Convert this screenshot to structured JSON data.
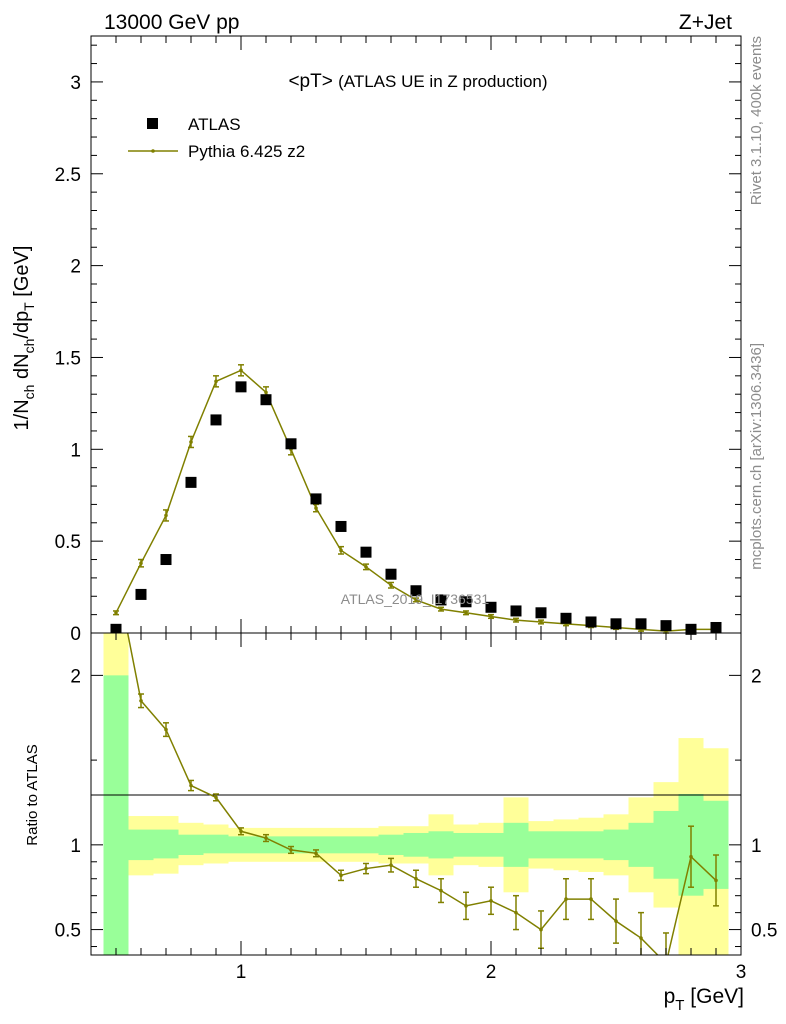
{
  "header": {
    "left": "13000 GeV pp",
    "right": "Z+Jet"
  },
  "chart_data": {
    "type": "scatter",
    "title": "<pT>",
    "subtitle": "(ATLAS UE in Z production)",
    "watermark": "ATLAS_2019_I1736531",
    "side_label_top": "Rivet 3.1.10,  400k events",
    "side_label_bottom": "mcplots.cern.ch [arXiv:1306.3436]",
    "xlabel": "p_T [GeV]",
    "xlim": [
      0.4,
      3.0
    ],
    "main": {
      "ylabel": "1/N_ch dN_ch/dp_T [GeV]",
      "ylim": [
        0,
        3.25
      ],
      "yticks": [
        "0",
        "0.5",
        "1",
        "1.5",
        "2",
        "2.5",
        "3"
      ],
      "legend_position": "top-left",
      "series": [
        {
          "name": "ATLAS",
          "style": "markers",
          "color": "#000000",
          "x": [
            0.5,
            0.6,
            0.7,
            0.8,
            0.9,
            1.0,
            1.1,
            1.2,
            1.3,
            1.4,
            1.5,
            1.6,
            1.7,
            1.8,
            1.9,
            2.0,
            2.1,
            2.2,
            2.3,
            2.4,
            2.5,
            2.6,
            2.7,
            2.8,
            2.9
          ],
          "y": [
            0.02,
            0.21,
            0.4,
            0.82,
            1.16,
            1.34,
            1.27,
            1.03,
            0.73,
            0.58,
            0.44,
            0.32,
            0.23,
            0.18,
            0.17,
            0.14,
            0.12,
            0.11,
            0.08,
            0.06,
            0.05,
            0.05,
            0.04,
            0.02,
            0.03
          ]
        },
        {
          "name": "Pythia 6.425 z2",
          "style": "line-errorbars",
          "color": "#808000",
          "x": [
            0.5,
            0.6,
            0.7,
            0.8,
            0.9,
            1.0,
            1.1,
            1.2,
            1.3,
            1.4,
            1.5,
            1.6,
            1.7,
            1.8,
            1.9,
            2.0,
            2.1,
            2.2,
            2.3,
            2.4,
            2.5,
            2.6,
            2.7,
            2.8,
            2.9
          ],
          "y": [
            0.11,
            0.38,
            0.64,
            1.04,
            1.37,
            1.43,
            1.31,
            1.0,
            0.68,
            0.45,
            0.36,
            0.26,
            0.18,
            0.13,
            0.11,
            0.09,
            0.07,
            0.06,
            0.05,
            0.04,
            0.03,
            0.02,
            0.01,
            0.02,
            0.02
          ],
          "err": [
            0.01,
            0.02,
            0.03,
            0.03,
            0.03,
            0.03,
            0.03,
            0.03,
            0.02,
            0.02,
            0.015,
            0.015,
            0.01,
            0.01,
            0.01,
            0.01,
            0.01,
            0.01,
            0.01,
            0.01,
            0.01,
            0.01,
            0.01,
            0.01,
            0.01
          ]
        }
      ]
    },
    "ratio": {
      "ylabel": "Ratio to ATLAS",
      "ylim": [
        0.35,
        2.25
      ],
      "yticks": [
        "0.5",
        "1",
        "2"
      ],
      "xticks": [
        "1",
        "2",
        "3"
      ],
      "band_colors": {
        "stat": "#99ff99",
        "total": "#ffff99"
      },
      "bins": [
        {
          "lo": 0.45,
          "hi": 0.55,
          "stat": [
            0.35,
            2.0
          ],
          "total": [
            0.35,
            2.25
          ]
        },
        {
          "lo": 0.55,
          "hi": 0.65,
          "stat": [
            0.91,
            1.09
          ],
          "total": [
            0.82,
            1.17
          ]
        },
        {
          "lo": 0.65,
          "hi": 0.75,
          "stat": [
            0.92,
            1.09
          ],
          "total": [
            0.83,
            1.17
          ]
        },
        {
          "lo": 0.75,
          "hi": 0.85,
          "stat": [
            0.94,
            1.06
          ],
          "total": [
            0.88,
            1.13
          ]
        },
        {
          "lo": 0.85,
          "hi": 0.95,
          "stat": [
            0.95,
            1.06
          ],
          "total": [
            0.89,
            1.12
          ]
        },
        {
          "lo": 0.95,
          "hi": 1.05,
          "stat": [
            0.95,
            1.05
          ],
          "total": [
            0.9,
            1.1
          ]
        },
        {
          "lo": 1.05,
          "hi": 1.15,
          "stat": [
            0.95,
            1.05
          ],
          "total": [
            0.9,
            1.1
          ]
        },
        {
          "lo": 1.15,
          "hi": 1.25,
          "stat": [
            0.95,
            1.05
          ],
          "total": [
            0.9,
            1.1
          ]
        },
        {
          "lo": 1.25,
          "hi": 1.35,
          "stat": [
            0.95,
            1.05
          ],
          "total": [
            0.9,
            1.1
          ]
        },
        {
          "lo": 1.35,
          "hi": 1.45,
          "stat": [
            0.95,
            1.05
          ],
          "total": [
            0.9,
            1.1
          ]
        },
        {
          "lo": 1.45,
          "hi": 1.55,
          "stat": [
            0.95,
            1.05
          ],
          "total": [
            0.9,
            1.1
          ]
        },
        {
          "lo": 1.55,
          "hi": 1.65,
          "stat": [
            0.94,
            1.06
          ],
          "total": [
            0.89,
            1.11
          ]
        },
        {
          "lo": 1.65,
          "hi": 1.75,
          "stat": [
            0.93,
            1.07
          ],
          "total": [
            0.89,
            1.11
          ]
        },
        {
          "lo": 1.75,
          "hi": 1.85,
          "stat": [
            0.92,
            1.08
          ],
          "total": [
            0.82,
            1.18
          ]
        },
        {
          "lo": 1.85,
          "hi": 1.95,
          "stat": [
            0.93,
            1.07
          ],
          "total": [
            0.88,
            1.12
          ]
        },
        {
          "lo": 1.95,
          "hi": 2.05,
          "stat": [
            0.93,
            1.07
          ],
          "total": [
            0.87,
            1.13
          ]
        },
        {
          "lo": 2.05,
          "hi": 2.15,
          "stat": [
            0.87,
            1.13
          ],
          "total": [
            0.72,
            1.28
          ]
        },
        {
          "lo": 2.15,
          "hi": 2.25,
          "stat": [
            0.92,
            1.08
          ],
          "total": [
            0.86,
            1.14
          ]
        },
        {
          "lo": 2.25,
          "hi": 2.35,
          "stat": [
            0.92,
            1.08
          ],
          "total": [
            0.85,
            1.15
          ]
        },
        {
          "lo": 2.35,
          "hi": 2.45,
          "stat": [
            0.92,
            1.08
          ],
          "total": [
            0.84,
            1.16
          ]
        },
        {
          "lo": 2.45,
          "hi": 2.55,
          "stat": [
            0.91,
            1.09
          ],
          "total": [
            0.82,
            1.18
          ]
        },
        {
          "lo": 2.55,
          "hi": 2.65,
          "stat": [
            0.87,
            1.13
          ],
          "total": [
            0.72,
            1.28
          ]
        },
        {
          "lo": 2.65,
          "hi": 2.75,
          "stat": [
            0.8,
            1.2
          ],
          "total": [
            0.63,
            1.37
          ]
        },
        {
          "lo": 2.75,
          "hi": 2.85,
          "stat": [
            0.7,
            1.3
          ],
          "total": [
            0.35,
            1.63
          ]
        },
        {
          "lo": 2.85,
          "hi": 2.95,
          "stat": [
            0.74,
            1.26
          ],
          "total": [
            0.35,
            1.57
          ]
        }
      ],
      "series": {
        "name": "Pythia 6.425 z2",
        "x": [
          0.5,
          0.6,
          0.7,
          0.8,
          0.9,
          1.0,
          1.1,
          1.2,
          1.3,
          1.4,
          1.5,
          1.6,
          1.7,
          1.8,
          1.9,
          2.0,
          2.1,
          2.2,
          2.3,
          2.4,
          2.5,
          2.6,
          2.7,
          2.8,
          2.9
        ],
        "y": [
          2.6,
          1.85,
          1.68,
          1.35,
          1.28,
          1.08,
          1.04,
          0.97,
          0.95,
          0.82,
          0.86,
          0.88,
          0.8,
          0.73,
          0.64,
          0.67,
          0.6,
          0.5,
          0.68,
          0.68,
          0.55,
          0.45,
          0.3,
          0.93,
          0.79
        ],
        "err": [
          0.05,
          0.04,
          0.04,
          0.03,
          0.02,
          0.02,
          0.02,
          0.02,
          0.02,
          0.03,
          0.03,
          0.04,
          0.05,
          0.07,
          0.08,
          0.08,
          0.1,
          0.11,
          0.12,
          0.12,
          0.13,
          0.15,
          0.18,
          0.18,
          0.15
        ]
      }
    }
  }
}
